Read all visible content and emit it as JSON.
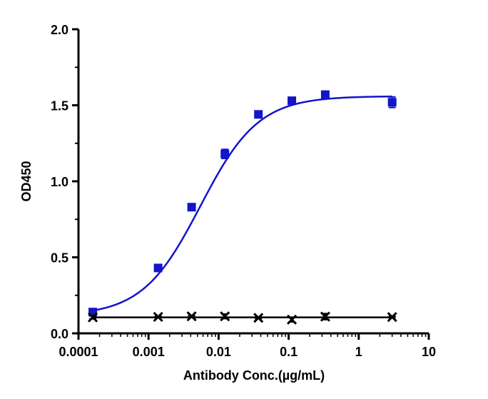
{
  "chart_data": {
    "type": "scatter",
    "title": "",
    "xlabel": "Antibody Conc.(µg/mL)",
    "ylabel": "OD450",
    "x_scale": "log",
    "xlim": [
      0.0001,
      10
    ],
    "ylim": [
      0,
      2.0
    ],
    "x_ticks": [
      0.0001,
      0.001,
      0.01,
      0.1,
      1,
      10
    ],
    "x_tick_labels": [
      "0.0001",
      "0.001",
      "0.01",
      "0.1",
      "1",
      "10"
    ],
    "y_ticks": [
      0,
      0.5,
      1.0,
      1.5,
      2.0
    ],
    "y_tick_labels": [
      "0.0",
      "0.5",
      "1.0",
      "1.5",
      "2.0"
    ],
    "grid": false,
    "legend": "none",
    "series": [
      {
        "color": "#1414c8",
        "marker": "square",
        "fit": "4PL sigmoid",
        "x": [
          0.00016,
          0.00137,
          0.00412,
          0.0123,
          0.037,
          0.111,
          0.333,
          3.0
        ],
        "y": [
          0.14,
          0.43,
          0.83,
          1.18,
          1.44,
          1.53,
          1.57,
          1.52
        ],
        "error": [
          0.01,
          0.01,
          0.015,
          0.03,
          0.01,
          0.01,
          0.01,
          0.035
        ],
        "fit_params": {
          "bottom": 0.115,
          "top": 1.56,
          "ec50": 0.0055,
          "hill": 1.05
        }
      },
      {
        "color": "#000000",
        "marker": "x",
        "fit": "flat",
        "x": [
          0.00016,
          0.00137,
          0.00412,
          0.0123,
          0.037,
          0.111,
          0.333,
          3.0
        ],
        "y": [
          0.105,
          0.108,
          0.112,
          0.112,
          0.102,
          0.09,
          0.11,
          0.107
        ],
        "error": [
          0.01,
          0.005,
          0.005,
          0.015,
          0.005,
          0.015,
          0.02,
          0.005
        ],
        "fit_value": 0.105
      }
    ]
  }
}
